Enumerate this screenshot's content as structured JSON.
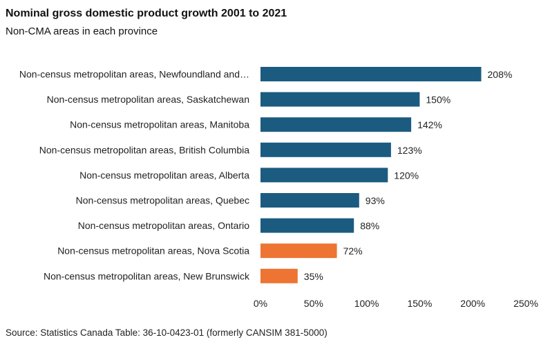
{
  "header": {
    "title": "Nominal gross domestic product growth 2001 to 2021",
    "subtitle": "Non-CMA areas in each province"
  },
  "footer": {
    "source": "Source: Statistics Canada Table: 36-10-0423-01 (formerly CANSIM 381-5000)"
  },
  "colors": {
    "primary": "#1b5b80",
    "highlight": "#ed7432"
  },
  "chart_data": {
    "type": "bar",
    "orientation": "horizontal",
    "title": "Nominal gross domestic product growth 2001 to 2021",
    "subtitle": "Non-CMA areas in each province",
    "categories": [
      "Non-census metropolitan areas, Newfoundland and…",
      "Non-census metropolitan areas, Saskatchewan",
      "Non-census metropolitan areas, Manitoba",
      "Non-census metropolitan areas, British Columbia",
      "Non-census metropolitan areas, Alberta",
      "Non-census metropolitan areas, Quebec",
      "Non-census metropolitan areas, Ontario",
      "Non-census metropolitan areas, Nova Scotia",
      "Non-census metropolitan areas, New Brunswick"
    ],
    "values": [
      208,
      150,
      142,
      123,
      120,
      93,
      88,
      72,
      35
    ],
    "value_labels": [
      "208%",
      "150%",
      "142%",
      "123%",
      "120%",
      "93%",
      "88%",
      "72%",
      "35%"
    ],
    "highlighted": [
      false,
      false,
      false,
      false,
      false,
      false,
      false,
      true,
      true
    ],
    "xlim": [
      0,
      250
    ],
    "x_ticks": [
      0,
      50,
      100,
      150,
      200,
      250
    ],
    "x_tick_labels": [
      "0%",
      "50%",
      "100%",
      "150%",
      "200%",
      "250%"
    ],
    "xlabel": "",
    "ylabel": "",
    "grid": false,
    "legend": "none"
  }
}
